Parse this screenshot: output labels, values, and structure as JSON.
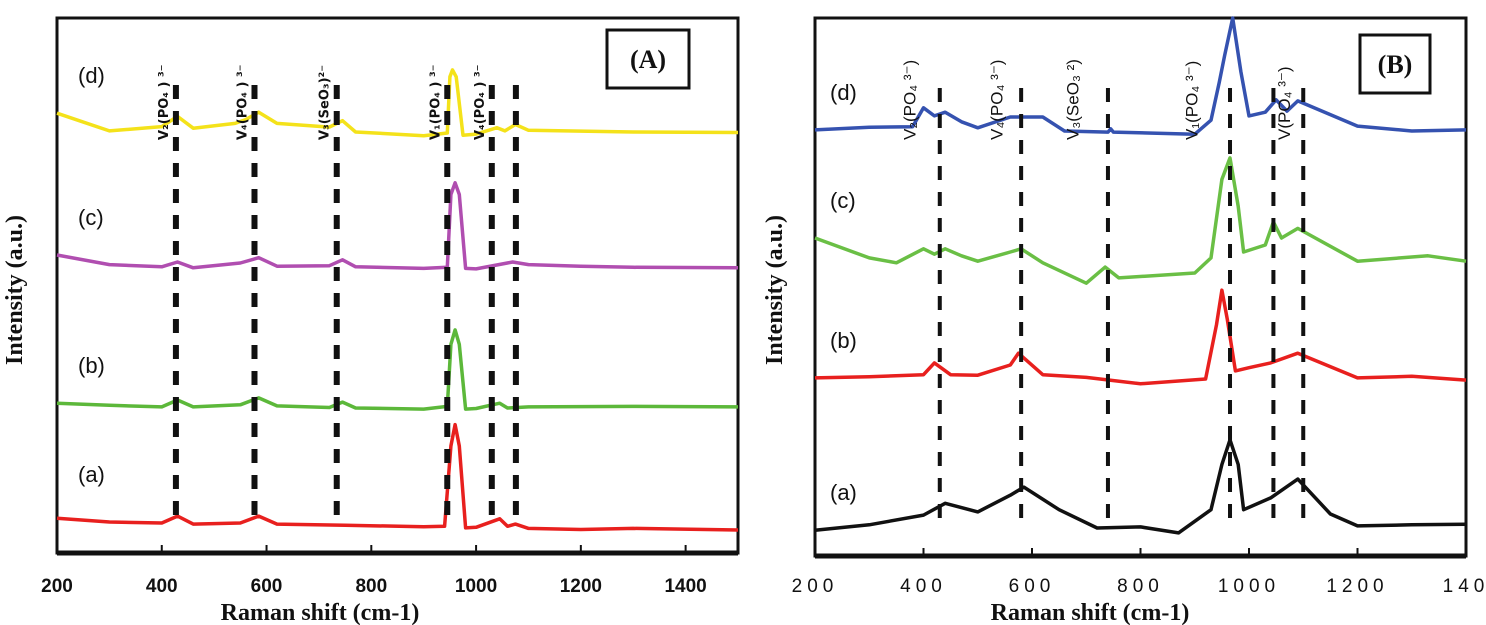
{
  "chart_data": [
    {
      "type": "line",
      "panel_label": "(A)",
      "xlabel": "Raman shift (cm-1)",
      "ylabel": "Intensity (a.u.)",
      "xlim": [
        200,
        1500
      ],
      "xticks": [
        "200",
        "400",
        "600",
        "800",
        "1000",
        "1200",
        "1400"
      ],
      "grid": false,
      "annotations": [
        "V₂(PO₄ ) ³⁻",
        "V₄(PO₄ ) ³⁻",
        "V₃(SeO₃)²⁻",
        "V₁(PO₄ ) ³⁻",
        "V₄(PO₄ ) ³⁻"
      ],
      "annotation_x": [
        427,
        577,
        734,
        945,
        1030
      ],
      "dashed_lines_x": [
        427,
        577,
        734,
        945,
        1030,
        1076
      ],
      "series": [
        {
          "name": "(a)",
          "color": "#e8201e",
          "x": [
            200,
            300,
            400,
            430,
            460,
            550,
            585,
            620,
            750,
            900,
            940,
            952,
            960,
            968,
            980,
            1000,
            1045,
            1060,
            1075,
            1100,
            1200,
            1300,
            1500
          ],
          "y": [
            6.5,
            5.8,
            5.6,
            6.9,
            5.4,
            5.6,
            6.9,
            5.4,
            5.2,
            4.9,
            5.0,
            20,
            24,
            20,
            4.7,
            4.8,
            6.4,
            5.0,
            5.4,
            4.6,
            4.4,
            4.6,
            4.3
          ]
        },
        {
          "name": "(b)",
          "color": "#5cb83a",
          "x": [
            200,
            300,
            400,
            430,
            460,
            550,
            585,
            620,
            720,
            745,
            770,
            900,
            945,
            952,
            960,
            968,
            980,
            1000,
            1045,
            1060,
            1100,
            1300,
            1500
          ],
          "y": [
            28.0,
            27.6,
            27.3,
            28.6,
            27.3,
            27.7,
            29.0,
            27.5,
            27.2,
            28.2,
            27.1,
            26.9,
            27.4,
            39,
            41.7,
            39,
            26.9,
            27.0,
            28.0,
            27.1,
            27.3,
            27.4,
            27.3
          ]
        },
        {
          "name": "(c)",
          "color": "#b04eb0",
          "x": [
            200,
            300,
            400,
            430,
            460,
            550,
            585,
            620,
            720,
            745,
            770,
            900,
            945,
            952,
            960,
            968,
            980,
            1000,
            1070,
            1100,
            1200,
            1300,
            1500
          ],
          "y": [
            55.7,
            53.9,
            53.5,
            54.4,
            53.3,
            54.2,
            55.2,
            53.6,
            53.7,
            54.8,
            53.5,
            53.2,
            53.4,
            67,
            69.2,
            67,
            53.2,
            53.1,
            54.4,
            53.9,
            53.6,
            53.4,
            53.3
          ]
        },
        {
          "name": "(d)",
          "color": "#f4e21a",
          "x": [
            200,
            300,
            400,
            430,
            460,
            540,
            560,
            585,
            620,
            720,
            745,
            770,
            900,
            945,
            950,
            955,
            962,
            975,
            1000,
            1040,
            1055,
            1075,
            1100,
            1300,
            1500
          ],
          "y": [
            82.2,
            78.9,
            79.7,
            81.6,
            79.4,
            80.3,
            81.0,
            82.4,
            80.3,
            79.6,
            80.8,
            78.7,
            78.0,
            78.5,
            89,
            90.3,
            89,
            78.1,
            78.3,
            79.5,
            78.9,
            80.1,
            79.0,
            78.7,
            78.6
          ]
        }
      ]
    },
    {
      "type": "line",
      "panel_label": "(B)",
      "xlabel": "Raman shift (cm-1)",
      "ylabel": "Intensity (a.u.)",
      "xlim": [
        200,
        1400
      ],
      "xticks": [
        "200",
        "400",
        "600",
        "800",
        "1000",
        "1200",
        "140"
      ],
      "grid": false,
      "annotations": [
        "V₂(PO₄ ³⁻)",
        "V₄(PO₄ ³⁻)",
        "V₃(SeO₃ ²)",
        "V₁(PO₄ ³⁻)",
        "V(PO₄ ³⁻)"
      ],
      "annotation_x": [
        400,
        560,
        700,
        920,
        1090
      ],
      "dashed_lines_x": [
        430,
        580,
        740,
        965,
        1045,
        1100
      ],
      "series": [
        {
          "name": "(a)",
          "color": "#111111",
          "x": [
            200,
            300,
            400,
            440,
            500,
            560,
            585,
            650,
            720,
            800,
            870,
            930,
            950,
            965,
            980,
            990,
            1040,
            1090,
            1150,
            1200,
            1300,
            1400
          ],
          "y": [
            4.8,
            5.8,
            7.6,
            9.8,
            8.2,
            11.3,
            12.8,
            8.6,
            5.2,
            5.4,
            4.3,
            8.6,
            17,
            21.6,
            17,
            8.6,
            10.8,
            14.3,
            7.8,
            5.6,
            5.8,
            5.9
          ]
        },
        {
          "name": "(b)",
          "color": "#e8201e",
          "x": [
            200,
            300,
            400,
            420,
            450,
            500,
            560,
            575,
            620,
            700,
            800,
            920,
            940,
            950,
            960,
            975,
            1000,
            1040,
            1090,
            1200,
            1300,
            1400
          ],
          "y": [
            33.1,
            33.3,
            33.7,
            35.9,
            33.7,
            33.6,
            35.5,
            37.7,
            33.7,
            33.2,
            32.0,
            32.9,
            43,
            49.4,
            44,
            34.4,
            35.0,
            35.9,
            37.7,
            33.1,
            33.4,
            32.7
          ]
        },
        {
          "name": "(c)",
          "color": "#6abf45",
          "x": [
            200,
            300,
            350,
            400,
            420,
            440,
            470,
            500,
            560,
            580,
            620,
            700,
            735,
            760,
            900,
            930,
            950,
            965,
            980,
            990,
            1030,
            1045,
            1060,
            1090,
            1200,
            1330,
            1400
          ],
          "y": [
            59.1,
            55.4,
            54.5,
            57.1,
            56.1,
            57.1,
            55.8,
            54.8,
            56.5,
            57.1,
            54.5,
            50.7,
            53.7,
            51.7,
            52.6,
            55.4,
            70,
            74,
            65,
            56.5,
            57.8,
            62.1,
            59.1,
            60.9,
            54.8,
            55.8,
            54.8
          ]
        },
        {
          "name": "(d)",
          "color": "#3552b0",
          "x": [
            200,
            300,
            380,
            400,
            420,
            440,
            470,
            500,
            560,
            620,
            660,
            740,
            745,
            750,
            900,
            930,
            945,
            955,
            970,
            985,
            1000,
            1030,
            1050,
            1070,
            1090,
            1200,
            1300,
            1400
          ],
          "y": [
            79.2,
            79.7,
            79.8,
            83.3,
            81.8,
            82.5,
            80.7,
            79.6,
            81.6,
            81.6,
            79.0,
            78.8,
            79.4,
            78.8,
            78.4,
            81.0,
            88,
            93,
            100,
            90,
            81.8,
            82.5,
            84.8,
            82.7,
            84.6,
            79.9,
            79.0,
            79.2
          ]
        }
      ]
    }
  ]
}
